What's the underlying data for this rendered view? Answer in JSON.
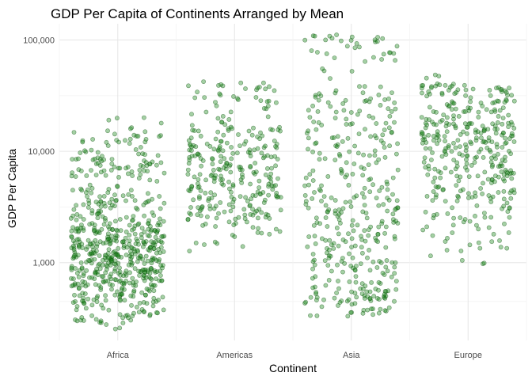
{
  "chart_data": {
    "type": "scatter",
    "title": "GDP Per Capita of Continents Arranged by Mean",
    "xlabel": "Continent",
    "ylabel": "GDP Per Capita",
    "y_scale": "log10",
    "ylim": [
      200,
      140000
    ],
    "y_ticks": [
      1000,
      10000,
      100000
    ],
    "y_tick_labels": [
      "1,000",
      "10,000",
      "100,000"
    ],
    "categories": [
      "Africa",
      "Americas",
      "Asia",
      "Europe"
    ],
    "jitter": "horizontal",
    "grid": true,
    "point_color": "#1b8a1b",
    "point_stroke": "#0b4d0b",
    "point_opacity": 0.4,
    "series": [
      {
        "category": "Africa",
        "values": [
          241,
          277,
          298,
          310,
          325,
          340,
          355,
          369,
          380,
          395,
          405,
          415,
          430,
          440,
          452,
          460,
          470,
          480,
          490,
          505,
          515,
          525,
          540,
          550,
          560,
          570,
          580,
          590,
          600,
          612,
          620,
          630,
          640,
          650,
          660,
          672,
          682,
          690,
          700,
          712,
          720,
          730,
          742,
          750,
          760,
          772,
          780,
          790,
          800,
          812,
          820,
          830,
          842,
          850,
          860,
          870,
          880,
          890,
          900,
          912,
          920,
          930,
          942,
          950,
          960,
          972,
          980,
          990,
          1000,
          1012,
          1020,
          1035,
          1045,
          1055,
          1070,
          1080,
          1095,
          1105,
          1120,
          1130,
          1145,
          1160,
          1170,
          1185,
          1200,
          1215,
          1230,
          1245,
          1260,
          1275,
          1290,
          1305,
          1320,
          1340,
          1355,
          1370,
          1390,
          1405,
          1425,
          1445,
          1460,
          1480,
          1500,
          1520,
          1545,
          1565,
          1590,
          1610,
          1635,
          1660,
          1690,
          1720,
          1750,
          1780,
          1810,
          1840,
          1880,
          1910,
          1950,
          1990,
          2030,
          2080,
          2120,
          2170,
          2220,
          2270,
          2330,
          2390,
          2450,
          2520,
          2580,
          2650,
          2720,
          2800,
          2880,
          2960,
          3050,
          3140,
          3240,
          3330,
          3440,
          3550,
          3660,
          3780,
          3900,
          4040,
          4180,
          4330,
          4490,
          4660,
          4840,
          5030,
          5230,
          5440,
          5670,
          5910,
          6170,
          6450,
          6740,
          7060,
          7400,
          7770,
          8170,
          8600,
          9070,
          9580,
          10140,
          10760,
          11440,
          12200,
          13060,
          14030,
          15120,
          16380,
          17820,
          19500,
          21600
        ],
        "approx_count": 624
      },
      {
        "category": "Americas",
        "values": [
          1200,
          1450,
          1700,
          1850,
          2000,
          2150,
          2280,
          2400,
          2520,
          2650,
          2780,
          2900,
          3020,
          3150,
          3280,
          3400,
          3520,
          3650,
          3780,
          3900,
          4040,
          4180,
          4320,
          4460,
          4600,
          4760,
          4920,
          5080,
          5240,
          5400,
          5580,
          5760,
          5940,
          6120,
          6320,
          6520,
          6720,
          6940,
          7160,
          7400,
          7640,
          7900,
          8180,
          8460,
          8760,
          9080,
          9420,
          9780,
          10160,
          10560,
          11000,
          11480,
          12000,
          12560,
          13180,
          13860,
          14620,
          15480,
          16460,
          17580,
          18860,
          20360,
          22120,
          24200,
          26700,
          29800,
          33000,
          36500,
          39000,
          42500
        ],
        "approx_count": 300
      },
      {
        "category": "Asia",
        "values": [
          330,
          350,
          375,
          400,
          425,
          450,
          480,
          510,
          540,
          570,
          605,
          640,
          680,
          720,
          760,
          805,
          850,
          900,
          955,
          1010,
          1070,
          1135,
          1200,
          1270,
          1350,
          1430,
          1520,
          1610,
          1710,
          1820,
          1930,
          2050,
          2180,
          2320,
          2470,
          2630,
          2800,
          2990,
          3190,
          3400,
          3640,
          3890,
          4160,
          4460,
          4780,
          5130,
          5510,
          5930,
          6390,
          6890,
          7440,
          8040,
          8700,
          9430,
          10230,
          11120,
          12110,
          13210,
          14440,
          15820,
          17370,
          19120,
          21100,
          23370,
          25970,
          28960,
          32430,
          36450,
          40000,
          60000,
          80000,
          95000,
          108000,
          113000
        ],
        "approx_count": 396
      },
      {
        "category": "Europe",
        "values": [
          950,
          1300,
          1700,
          2100,
          2500,
          2900,
          3300,
          3700,
          4100,
          4550,
          5000,
          5450,
          5900,
          6350,
          6800,
          7300,
          7800,
          8300,
          8850,
          9400,
          9950,
          10550,
          11150,
          11800,
          12450,
          13150,
          13900,
          14650,
          15450,
          16300,
          17200,
          18150,
          19150,
          20200,
          21350,
          22550,
          23850,
          25250,
          26750,
          28400,
          30200,
          32200,
          34400,
          36900,
          39700,
          48700
        ],
        "approx_count": 360
      }
    ]
  }
}
